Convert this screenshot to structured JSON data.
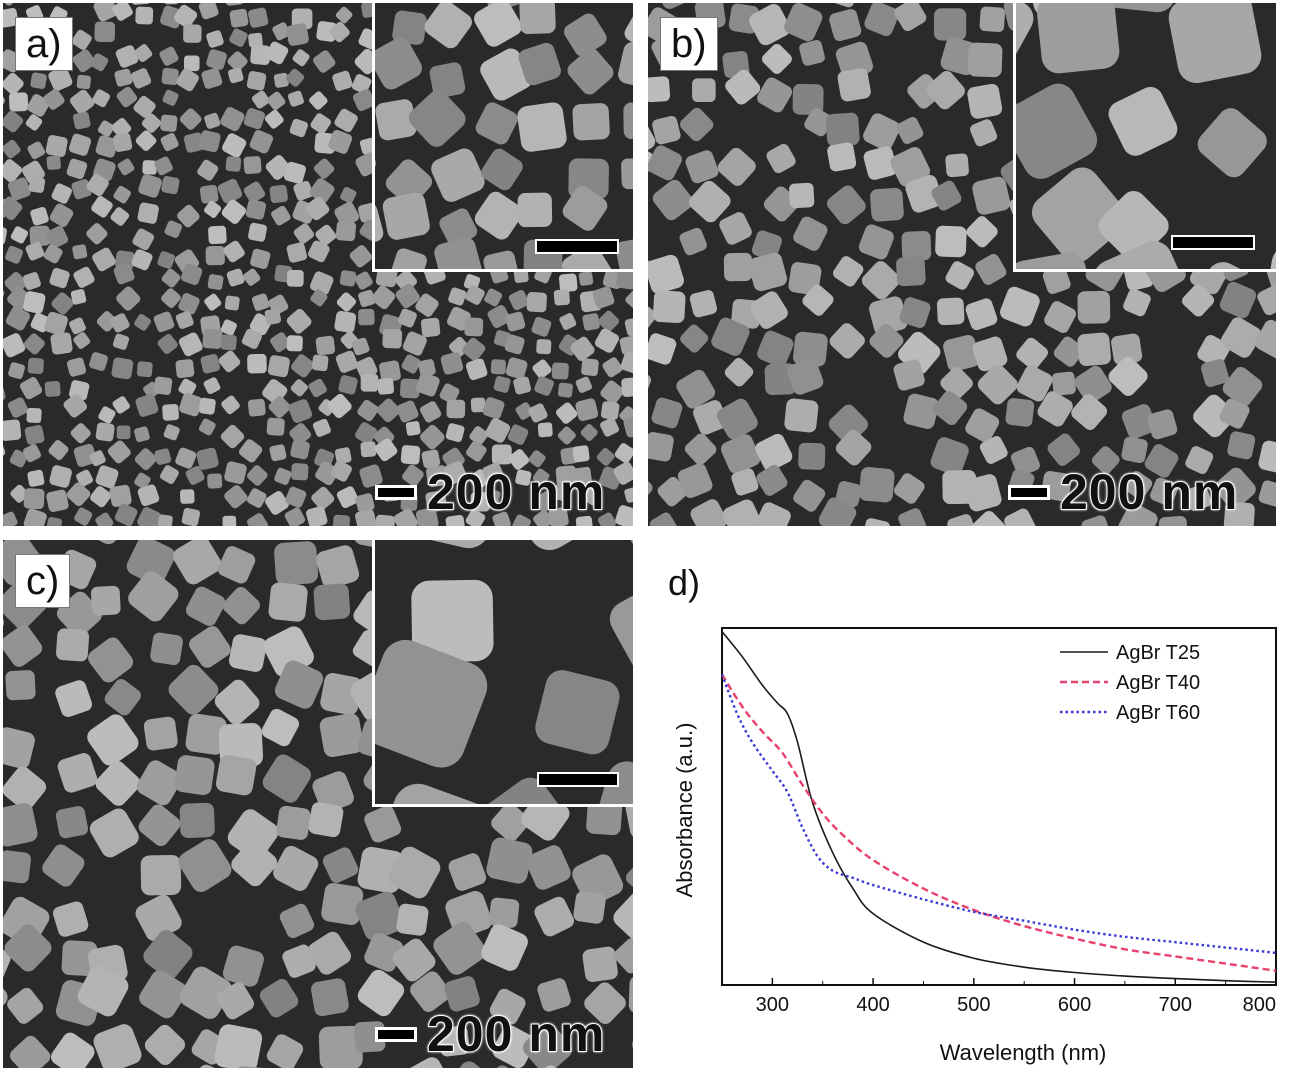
{
  "panels": [
    {
      "label": "a)",
      "scale_bar": "200 nm"
    },
    {
      "label": "b)",
      "scale_bar": "200 nm"
    },
    {
      "label": "c)",
      "scale_bar": "200 nm"
    }
  ],
  "chart_panel_label": "d)",
  "colors": {
    "sem_background": "#2a2a2a",
    "particle": "#9a9a9a",
    "t25": "#1a1a1a",
    "t40": "#e8416c",
    "t60": "#3b3bd8"
  },
  "chart_data": {
    "type": "line",
    "xlabel": "Wavelength (nm)",
    "ylabel": "Absorbance (a.u.)",
    "xlim": [
      250,
      800
    ],
    "ylim": [
      0,
      1
    ],
    "xticks": [
      300,
      400,
      500,
      600,
      700,
      800
    ],
    "y_tick_labels": false,
    "legend_position": "top-right",
    "series": [
      {
        "name": "AgBr T25",
        "style": "solid",
        "color": "#1a1a1a",
        "x": [
          250,
          270,
          290,
          305,
          315,
          325,
          340,
          360,
          380,
          400,
          450,
          500,
          550,
          600,
          650,
          700,
          750,
          800
        ],
        "y": [
          0.99,
          0.92,
          0.84,
          0.79,
          0.76,
          0.68,
          0.51,
          0.37,
          0.27,
          0.2,
          0.12,
          0.075,
          0.05,
          0.035,
          0.025,
          0.018,
          0.012,
          0.008
        ]
      },
      {
        "name": "AgBr T40",
        "style": "dashed",
        "color": "#e8416c",
        "x": [
          250,
          270,
          290,
          310,
          330,
          350,
          370,
          400,
          450,
          500,
          550,
          600,
          650,
          700,
          750,
          800
        ],
        "y": [
          0.87,
          0.78,
          0.71,
          0.65,
          0.56,
          0.48,
          0.42,
          0.35,
          0.27,
          0.21,
          0.165,
          0.13,
          0.1,
          0.08,
          0.06,
          0.04
        ]
      },
      {
        "name": "AgBr T60",
        "style": "dotted",
        "color": "#3b3bd8",
        "x": [
          250,
          265,
          280,
          300,
          315,
          330,
          345,
          360,
          380,
          400,
          450,
          500,
          550,
          600,
          650,
          700,
          750,
          800
        ],
        "y": [
          0.87,
          0.76,
          0.68,
          0.6,
          0.54,
          0.44,
          0.36,
          0.32,
          0.3,
          0.28,
          0.24,
          0.205,
          0.18,
          0.155,
          0.135,
          0.12,
          0.105,
          0.09
        ]
      }
    ]
  }
}
